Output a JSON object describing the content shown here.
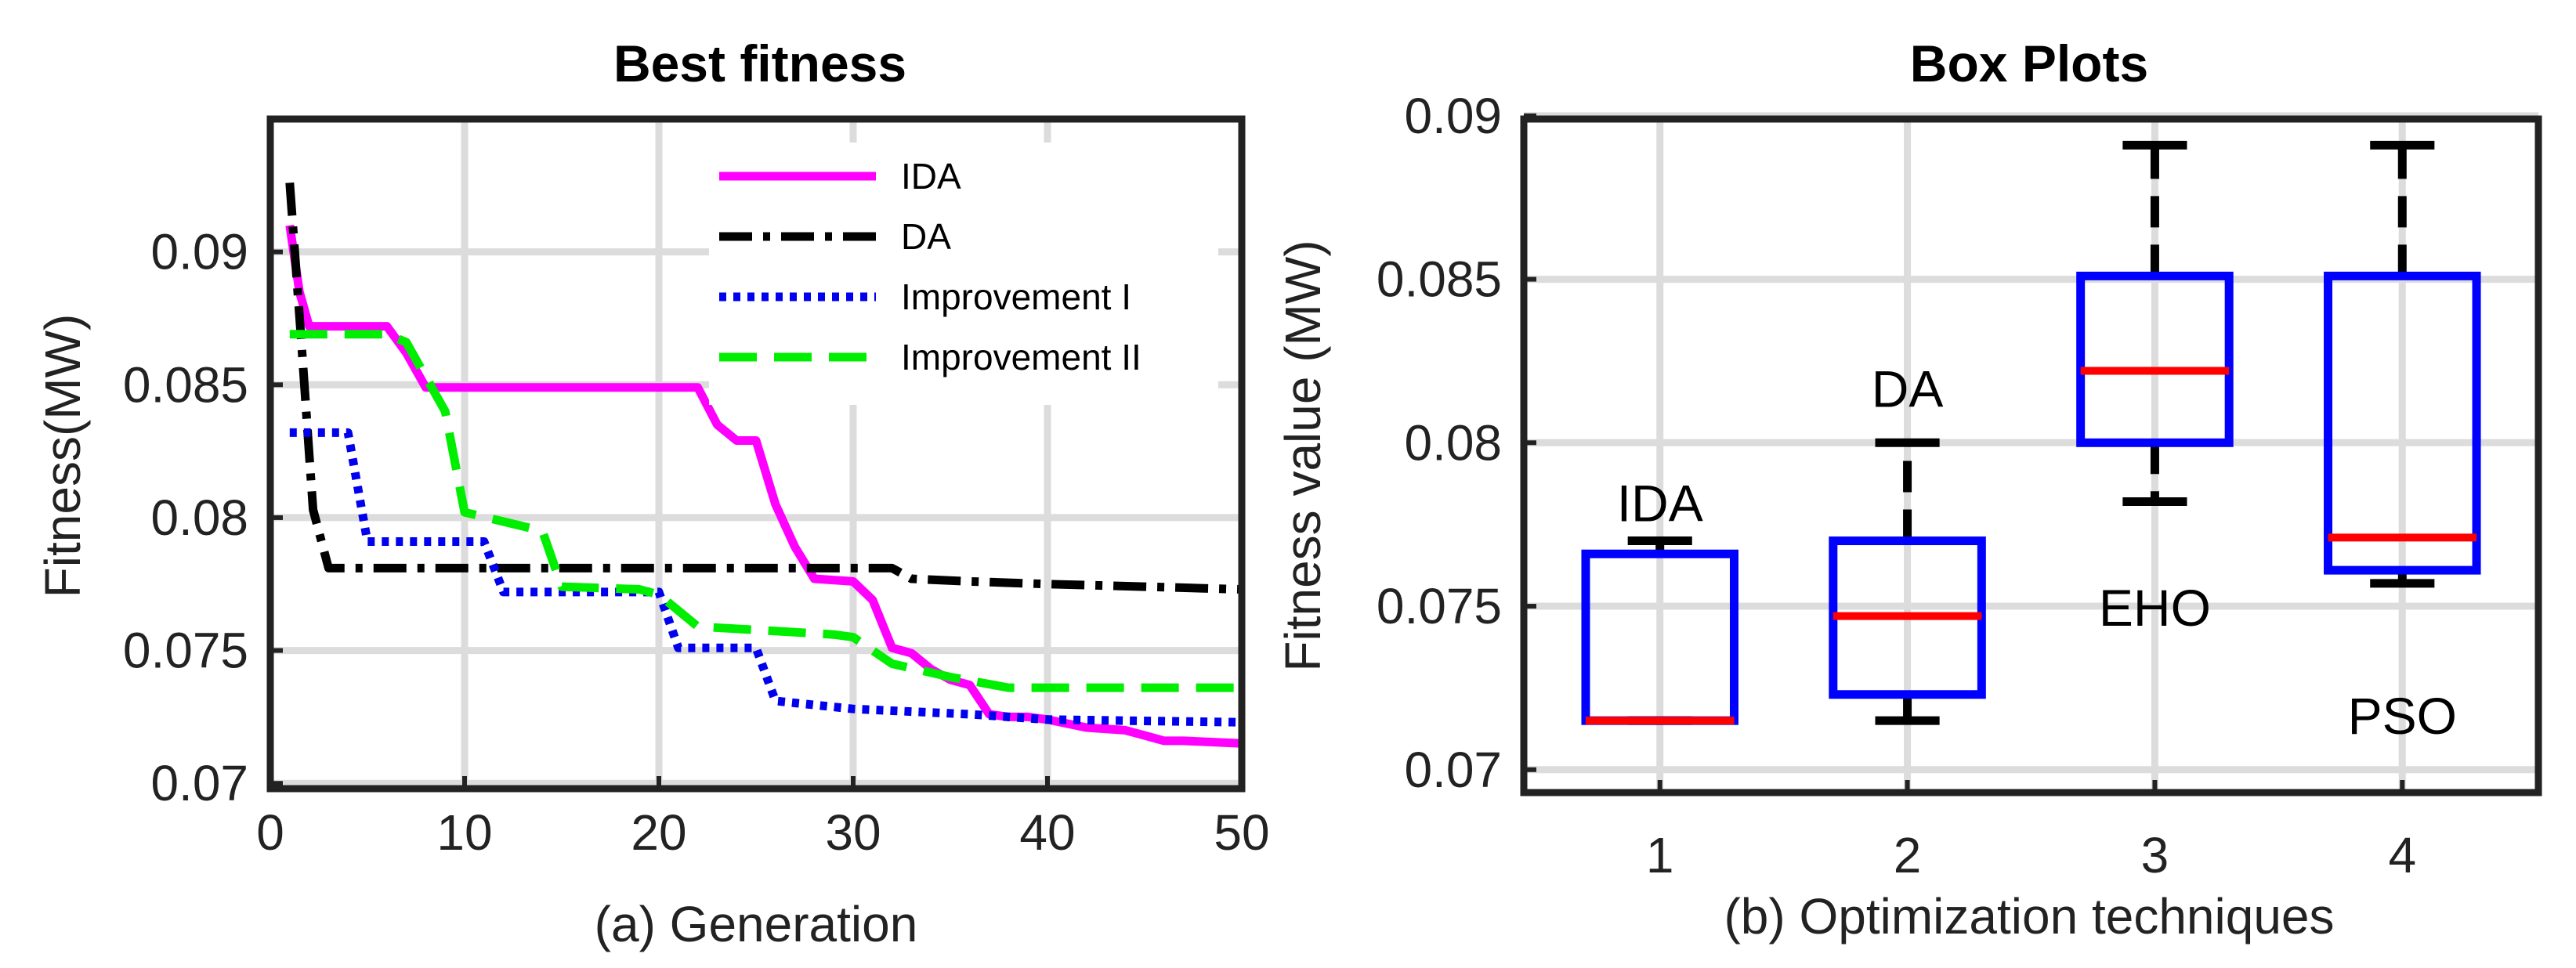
{
  "chart_data": [
    {
      "type": "line",
      "title": "Best fitness",
      "xlabel": "(a)  Generation",
      "ylabel": "Fitness(MW)",
      "xlim": [
        0,
        50
      ],
      "ylim": [
        0.0698,
        0.095
      ],
      "xticks": [
        0,
        10,
        20,
        30,
        40,
        50
      ],
      "xtick_labels": [
        "0",
        "10",
        "20",
        "30",
        "40",
        "50"
      ],
      "yticks": [
        0.07,
        0.075,
        0.08,
        0.085,
        0.09
      ],
      "ytick_labels": [
        "0.07",
        "0.075",
        "0.08",
        "0.085",
        "0.09"
      ],
      "grid": true,
      "legend": "top-right",
      "series": [
        {
          "name": "IDA",
          "color": "#ff00ff",
          "style": "solid",
          "x": [
            1,
            1.5,
            2,
            6,
            7,
            8,
            22,
            23,
            24,
            25,
            26,
            27,
            28,
            30,
            31,
            32,
            33,
            34,
            35,
            36,
            37,
            38,
            39,
            40,
            42,
            44,
            45,
            46,
            47,
            50
          ],
          "y": [
            0.091,
            0.0885,
            0.0872,
            0.0872,
            0.0862,
            0.0849,
            0.0849,
            0.0835,
            0.0829,
            0.0829,
            0.0805,
            0.0789,
            0.0777,
            0.0776,
            0.0769,
            0.0751,
            0.0749,
            0.0743,
            0.0739,
            0.0737,
            0.0726,
            0.0725,
            0.0725,
            0.0724,
            0.0721,
            0.072,
            0.0718,
            0.0716,
            0.0716,
            0.0715
          ]
        },
        {
          "name": "DA",
          "color": "#000000",
          "style": "dashdot",
          "x": [
            1,
            1.6,
            2.2,
            3,
            32,
            33,
            36,
            40,
            45,
            50
          ],
          "y": [
            0.0926,
            0.0866,
            0.0803,
            0.0781,
            0.0781,
            0.0777,
            0.0776,
            0.0775,
            0.0774,
            0.0773
          ]
        },
        {
          "name": "Improvement I",
          "color": "#0000ee",
          "style": "dotted",
          "x": [
            1,
            4,
            5,
            11,
            12,
            20,
            21,
            25,
            26,
            30,
            36,
            40,
            50
          ],
          "y": [
            0.0832,
            0.0832,
            0.0791,
            0.0791,
            0.0772,
            0.0772,
            0.0751,
            0.0751,
            0.0731,
            0.0728,
            0.0726,
            0.0724,
            0.0723
          ]
        },
        {
          "name": "Improvement II",
          "color": "#00ee00",
          "style": "dashed",
          "x": [
            1,
            6,
            7,
            9,
            10,
            14,
            15,
            19,
            20,
            22,
            29,
            30,
            32,
            35,
            38,
            40,
            50
          ],
          "y": [
            0.0869,
            0.0869,
            0.0866,
            0.084,
            0.0802,
            0.0795,
            0.0774,
            0.0773,
            0.0771,
            0.0759,
            0.0756,
            0.0755,
            0.0745,
            0.074,
            0.0736,
            0.0736,
            0.0736
          ]
        }
      ]
    },
    {
      "type": "box",
      "title": "Box Plots",
      "xlabel": "(b)  Optimization techniques",
      "ylabel": "Fitness value (MW)",
      "xlim": [
        0.45,
        4.55
      ],
      "ylim": [
        0.0693,
        0.0899
      ],
      "xticks": [
        1,
        2,
        3,
        4
      ],
      "xtick_labels": [
        "1",
        "2",
        "3",
        "4"
      ],
      "yticks": [
        0.07,
        0.075,
        0.08,
        0.085,
        0.09
      ],
      "ytick_labels": [
        "0.07",
        "0.075",
        "0.08",
        "0.085",
        "0.09"
      ],
      "grid": true,
      "box_color": "#0000ff",
      "median_color": "#ff0000",
      "boxes": [
        {
          "position": 1,
          "label": "IDA",
          "min": 0.0715,
          "q1": 0.0715,
          "median": 0.0715,
          "q3": 0.0766,
          "max": 0.077
        },
        {
          "position": 2,
          "label": "DA",
          "min": 0.0715,
          "q1": 0.0723,
          "median": 0.0747,
          "q3": 0.077,
          "max": 0.08
        },
        {
          "position": 3,
          "label": "EHO",
          "min": 0.0782,
          "q1": 0.08,
          "median": 0.0822,
          "q3": 0.0851,
          "max": 0.0891
        },
        {
          "position": 4,
          "label": "PSO",
          "min": 0.0757,
          "q1": 0.0761,
          "median": 0.0771,
          "q3": 0.0851,
          "max": 0.0891
        }
      ],
      "annotations": [
        {
          "text": "IDA",
          "x": 1.0,
          "y": 0.0776
        },
        {
          "text": "DA",
          "x": 2.0,
          "y": 0.0811
        },
        {
          "text": "EHO",
          "x": 3.0,
          "y": 0.0744
        },
        {
          "text": "PSO",
          "x": 4.0,
          "y": 0.0711
        }
      ]
    }
  ]
}
